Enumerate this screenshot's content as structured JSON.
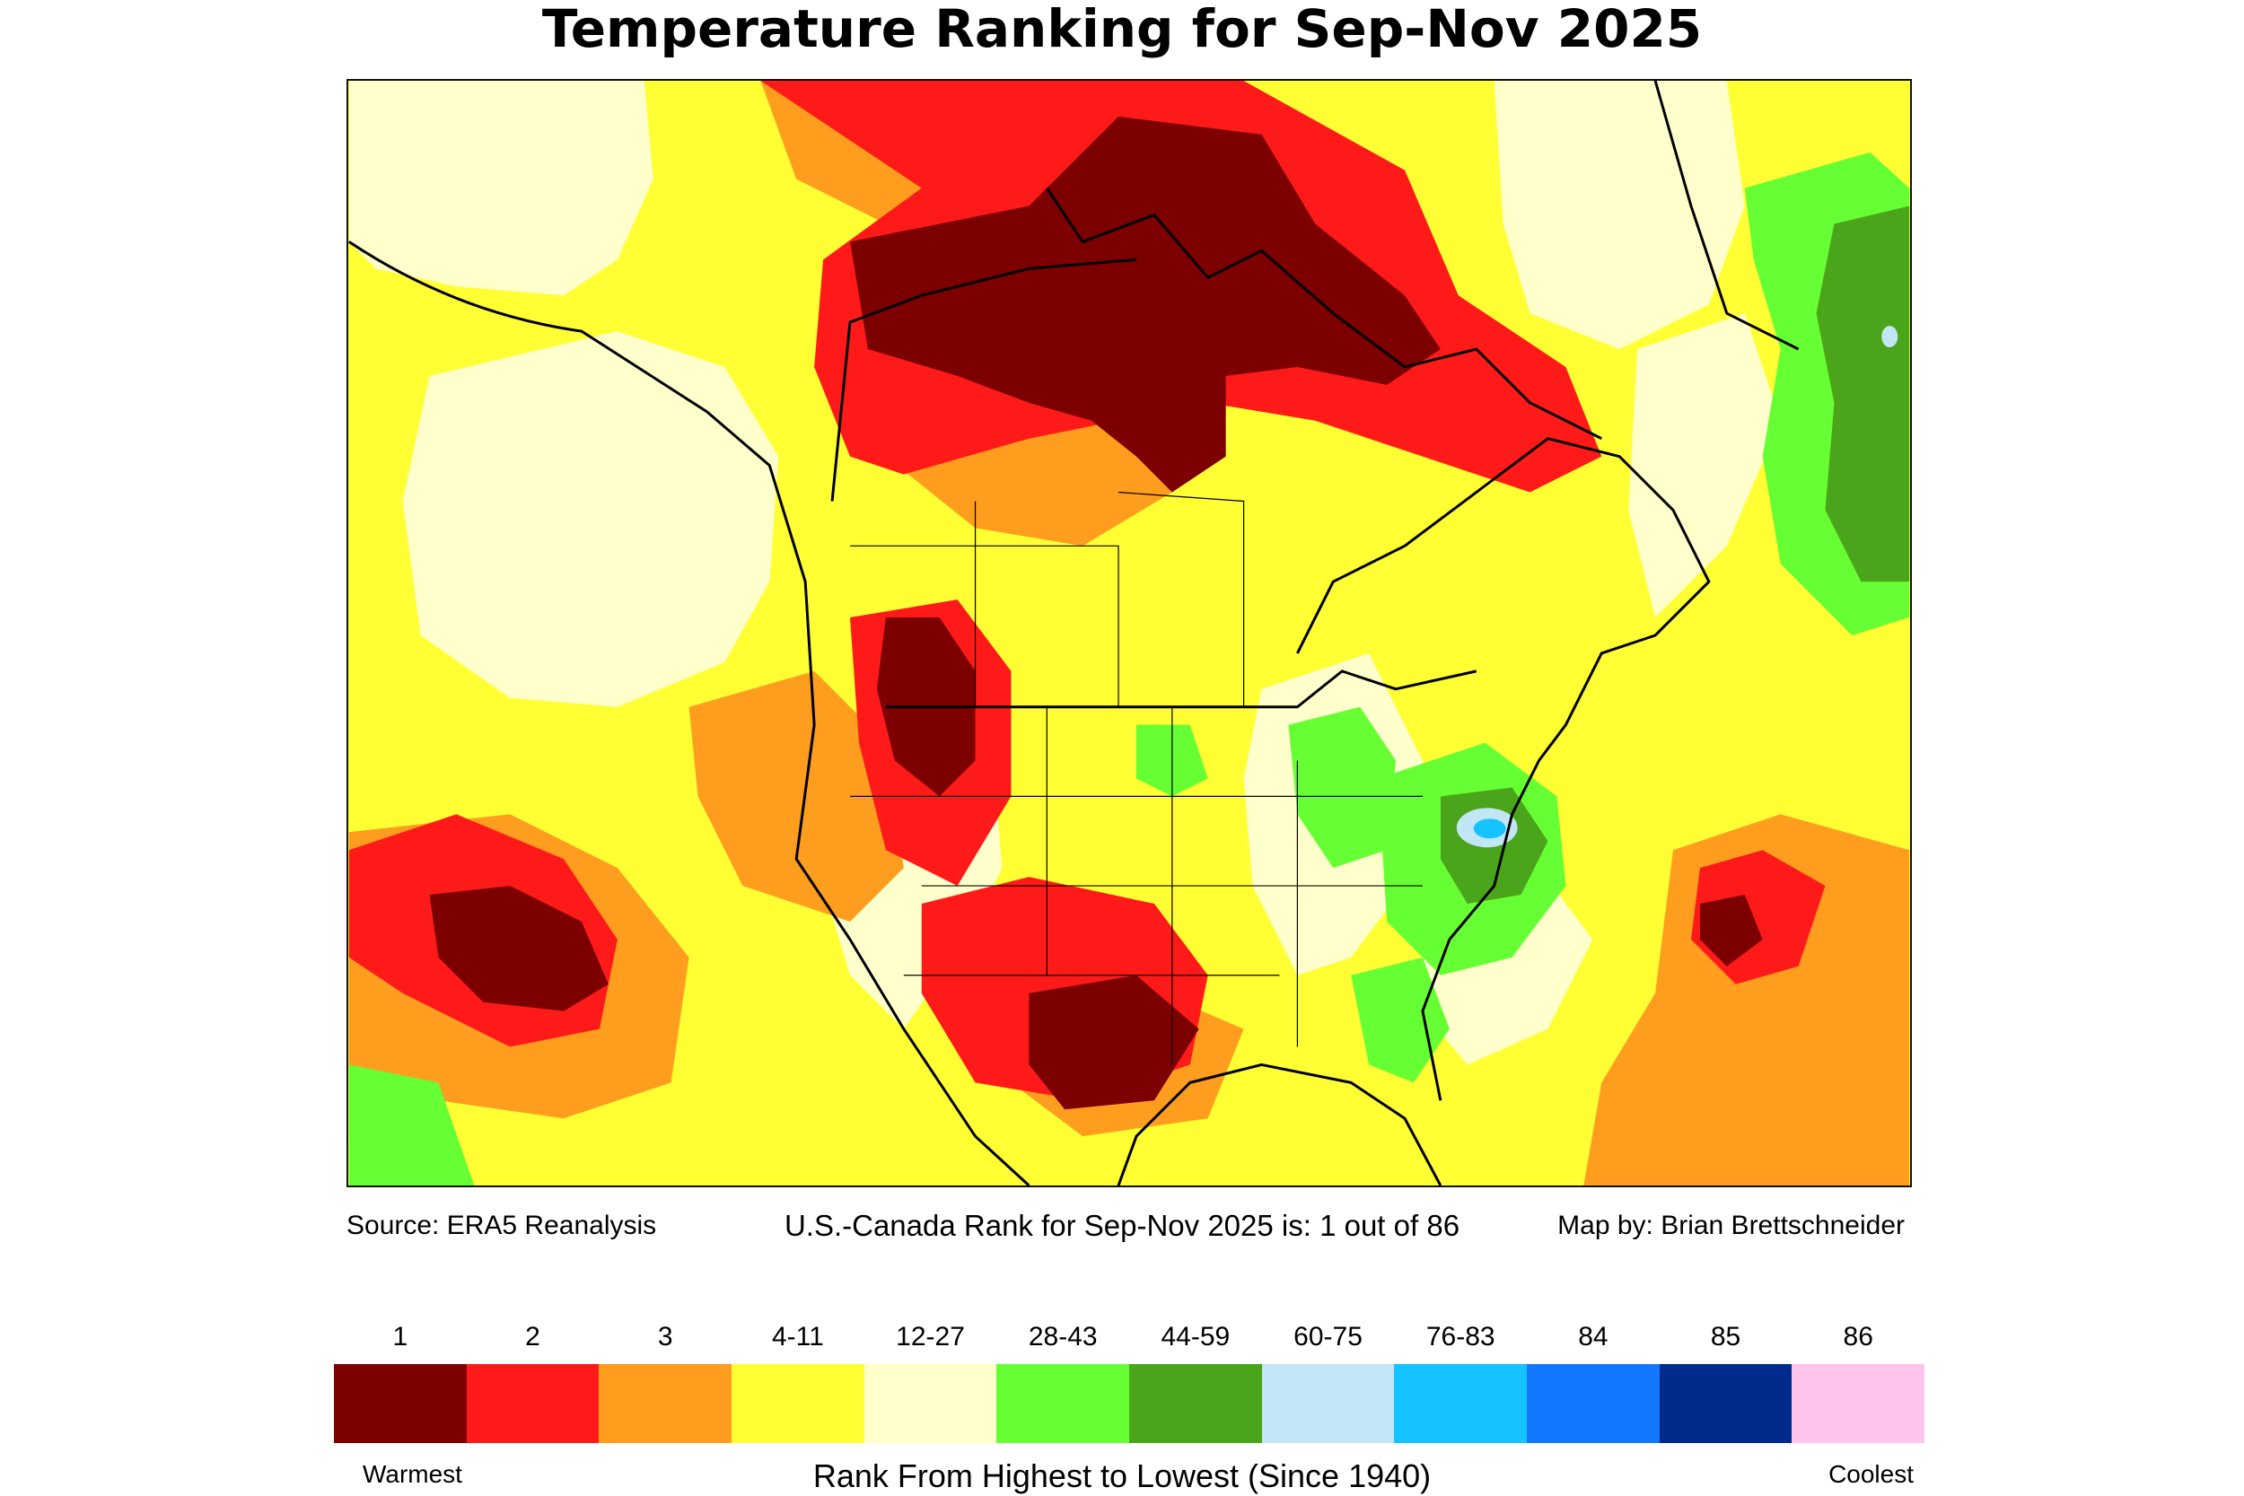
{
  "title": "Temperature Ranking for Sep-Nov 2025",
  "captions": {
    "source": "Source: ERA5 Reanalysis",
    "rank": "U.S.-Canada Rank for Sep-Nov 2025 is: 1 out of 86",
    "credit": "Map by: Brian Brettschneider"
  },
  "legend": {
    "classes": [
      {
        "label": "1",
        "color": "#7d0000"
      },
      {
        "label": "2",
        "color": "#ff1a1a"
      },
      {
        "label": "3",
        "color": "#ff9d1e"
      },
      {
        "label": "4-11",
        "color": "#ffff33"
      },
      {
        "label": "12-27",
        "color": "#ffffcc"
      },
      {
        "label": "28-43",
        "color": "#66ff33"
      },
      {
        "label": "44-59",
        "color": "#4ba51a"
      },
      {
        "label": "60-75",
        "color": "#c3e6f7"
      },
      {
        "label": "76-83",
        "color": "#14c3ff"
      },
      {
        "label": "84",
        "color": "#1478ff"
      },
      {
        "label": "85",
        "color": "#002b8c"
      },
      {
        "label": "86",
        "color": "#ffc4ec"
      }
    ],
    "warm_end": "Warmest",
    "cool_end": "Coolest",
    "axis_label": "Rank From Highest to Lowest (Since 1940)"
  }
}
